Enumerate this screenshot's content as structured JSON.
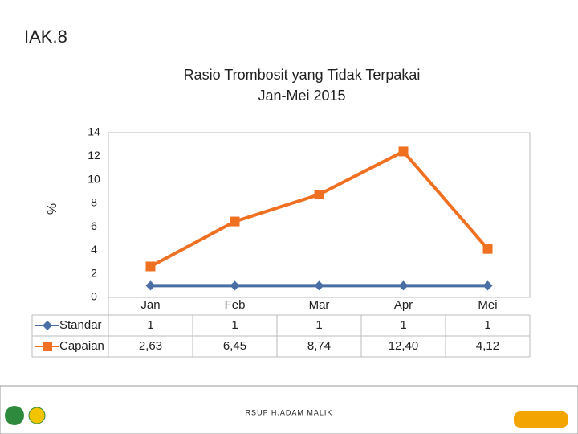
{
  "heading": "IAK.8",
  "footer": "RSUP H.ADAM MALIK",
  "chart_data": {
    "type": "line",
    "title": [
      "Rasio Trombosit yang Tidak Terpakai",
      "Jan-Mei 2015"
    ],
    "y_label": "%",
    "categories": [
      "Jan",
      "Feb",
      "Mar",
      "Apr",
      "Mei"
    ],
    "series": [
      {
        "name": "Standar",
        "color": "#4a6fa5",
        "marker": "diamond",
        "values": [
          1,
          1,
          1,
          1,
          1
        ]
      },
      {
        "name": "Capaian",
        "color": "#f07022",
        "marker": "square",
        "values": [
          2.63,
          6.45,
          8.74,
          12.4,
          4.12
        ],
        "value_labels": [
          "2,63",
          "6,45",
          "8,74",
          "12,40",
          "4,12"
        ]
      }
    ],
    "ylim": [
      0,
      14
    ],
    "yticks": [
      0,
      2,
      4,
      6,
      8,
      10,
      12,
      14
    ],
    "grid": false,
    "data_table": true
  }
}
